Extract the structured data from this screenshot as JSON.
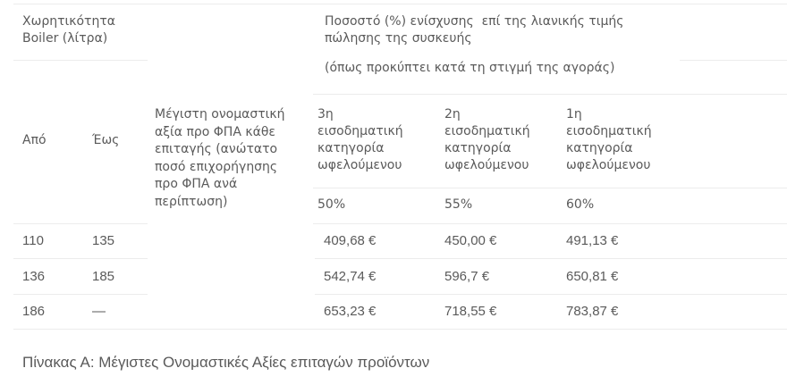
{
  "table": {
    "header_capacity": "Χωρητικότητα\nBoiler (λίτρα)",
    "header_percentage": "Ποσοστό (%) ενίσχυσης  επί της λιανικής τιμής\nπώλησης της συσκευής",
    "header_percentage_note": "(όπως προκύπτει κατά τη στιγμή της αγοράς)",
    "col_from": "Από",
    "col_to": "Έως",
    "col_max_value": "Μέγιστη ονομαστική\nαξία προ ΦΠΑ κάθε\nεπιταγής (ανώτατο\nποσό επιχορήγησης\nπρο ΦΠΑ ανά\nπερίπτωση)",
    "categories": [
      {
        "label": "3η\nεισοδηματική\nκατηγορία\nωφελούμενου",
        "percent": "50%"
      },
      {
        "label": "2η\nεισοδηματική\nκατηγορία\nωφελούμενου",
        "percent": "55%"
      },
      {
        "label": "1η\nεισοδηματική\nκατηγορία\nωφελούμενου",
        "percent": "60%"
      }
    ],
    "rows": [
      {
        "from": "110",
        "to": "135",
        "values": [
          "409,68 €",
          "450,00 €",
          "491,13 €"
        ]
      },
      {
        "from": "136",
        "to": "185",
        "values": [
          "542,74 €",
          "596,7 €",
          "650,81 €"
        ]
      },
      {
        "from": "186",
        "to": "—",
        "values": [
          "653,23 €",
          "718,55 €",
          "783,87 €"
        ]
      }
    ]
  },
  "caption": "Πίνακας Α: Μέγιστες Ονομαστικές Αξίες επιταγών προϊόντων"
}
